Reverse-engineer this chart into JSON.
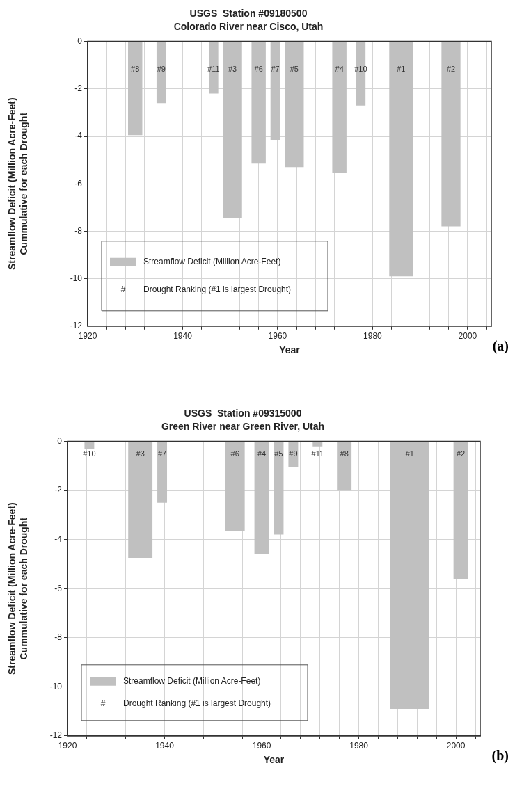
{
  "chart_data": [
    {
      "type": "histogram",
      "title": "USGS  Station #09180500",
      "subtitle": "Colorado River near Cisco, Utah",
      "xlabel": "Year",
      "ylabel": "Streamflow Deficit (Million Acre-Feet)\nCummulative for each Drought",
      "bins": [
        1928.5,
        1931.5,
        1934.5,
        1936.5,
        1945.5,
        1947.5,
        1948.5,
        1952.5,
        1954.5,
        1957.5,
        1958.5,
        1960.5,
        1961.5,
        1965.5,
        1971.5,
        1974.5,
        1976.5,
        1978.5,
        1983.5,
        1988.5,
        1994.5,
        1998.5
      ],
      "series": [
        {
          "name": "Streamflow Deficit (Million Acre-Feet)",
          "color": "#c0c0c0",
          "values": [
            -3.95,
            0,
            -2.6,
            0,
            -2.2,
            0,
            -7.45,
            0,
            -5.15,
            0,
            -4.15,
            0,
            -5.3,
            0,
            -5.55,
            0,
            -2.7,
            0,
            -9.9,
            0,
            -7.8
          ]
        }
      ],
      "xlim": [
        1920,
        2005
      ],
      "xticks": [
        1920,
        {
          "value": 1924,
          "label": null
        },
        {
          "value": 1928,
          "label": null
        },
        {
          "value": 1932,
          "label": null
        },
        {
          "value": 1936,
          "label": null
        },
        1940,
        {
          "value": 1944,
          "label": null
        },
        {
          "value": 1948,
          "label": null
        },
        {
          "value": 1952,
          "label": null
        },
        {
          "value": 1956,
          "label": null
        },
        1960,
        {
          "value": 1964,
          "label": null
        },
        {
          "value": 1968,
          "label": null
        },
        {
          "value": 1972,
          "label": null
        },
        {
          "value": 1976,
          "label": null
        },
        1980,
        {
          "value": 1984,
          "label": null
        },
        {
          "value": 1988,
          "label": null
        },
        {
          "value": 1992,
          "label": null
        },
        {
          "value": 1996,
          "label": null
        },
        2000,
        {
          "value": 2004,
          "label": null
        }
      ],
      "ylim": [
        -12,
        0
      ],
      "yticks": [
        -12,
        -10,
        -8,
        -6,
        -4,
        -2,
        0
      ],
      "grid": true,
      "legend": "bottom left",
      "annotations": [
        "#",
        "Drought Ranking (#1 is largest Drought)",
        "(a)",
        "#8",
        "#9",
        "#11",
        "#3",
        "#6",
        "#7",
        "#5",
        "#4",
        "#10",
        "#1",
        "#2"
      ]
    },
    {
      "type": "histogram",
      "title": "USGS  Station #09315000",
      "subtitle": "Green River near Green River, Utah",
      "xlabel": "Year",
      "ylabel": "Streamflow Deficit (Million Acre-Feet)\nCummulative for each Drought",
      "bins": [
        1923.5,
        1925.5,
        1932.5,
        1937.5,
        1938.5,
        1940.5,
        1952.5,
        1956.5,
        1958.5,
        1961.5,
        1962.5,
        1964.5,
        1965.5,
        1967.5,
        1970.5,
        1972.5,
        1975.5,
        1978.5,
        1986.5,
        1994.5,
        1999.5,
        2002.5
      ],
      "series": [
        {
          "name": "Streamflow Deficit (Million Acre-Feet)",
          "color": "#c0c0c0",
          "values": [
            -0.3,
            0,
            -4.75,
            0,
            -2.5,
            0,
            -3.65,
            0,
            -4.6,
            0,
            -3.8,
            0,
            -1.05,
            0,
            -0.2,
            0,
            -2.0,
            0,
            -10.9,
            0,
            -5.6
          ]
        }
      ],
      "xlim": [
        1920,
        2005
      ],
      "xticks": [
        1920,
        {
          "value": 1924,
          "label": null
        },
        {
          "value": 1928,
          "label": null
        },
        {
          "value": 1932,
          "label": null
        },
        {
          "value": 1936,
          "label": null
        },
        1940,
        {
          "value": 1944,
          "label": null
        },
        {
          "value": 1948,
          "label": null
        },
        {
          "value": 1952,
          "label": null
        },
        {
          "value": 1956,
          "label": null
        },
        1960,
        {
          "value": 1964,
          "label": null
        },
        {
          "value": 1968,
          "label": null
        },
        {
          "value": 1972,
          "label": null
        },
        {
          "value": 1976,
          "label": null
        },
        1980,
        {
          "value": 1984,
          "label": null
        },
        {
          "value": 1988,
          "label": null
        },
        {
          "value": 1992,
          "label": null
        },
        {
          "value": 1996,
          "label": null
        },
        2000,
        {
          "value": 2004,
          "label": null
        }
      ],
      "ylim": [
        -12,
        0
      ],
      "yticks": [
        -12,
        -10,
        -8,
        -6,
        -4,
        -2,
        0
      ],
      "grid": true,
      "legend": "bottom left",
      "annotations": [
        "#",
        "Drought Ranking (#1 is largest Drought)",
        "(b)",
        "#10",
        "#3",
        "#7",
        "#6",
        "#4",
        "#5",
        "#9",
        "#11",
        "#8",
        "#1",
        "#2"
      ]
    }
  ]
}
